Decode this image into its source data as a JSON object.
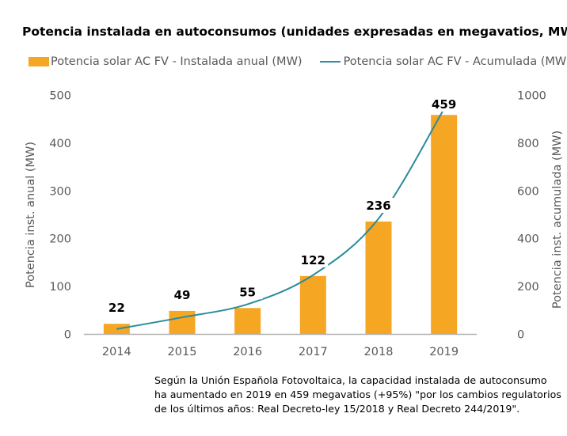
{
  "chart_data": {
    "type": "bar",
    "title": "Potencia instalada en autoconsumos (unidades expresadas en megavatios, MW)",
    "categories": [
      "2014",
      "2015",
      "2016",
      "2017",
      "2018",
      "2019"
    ],
    "series": [
      {
        "name": "Potencia solar AC FV - Instalada anual (MW)",
        "type": "bar",
        "axis": "left",
        "color": "#f5a623",
        "values": [
          22,
          49,
          55,
          122,
          236,
          459
        ]
      },
      {
        "name": "Potencia solar AC FV - Acumulada (MW)",
        "type": "line",
        "axis": "right",
        "color": "#2a8c9c",
        "values": [
          22,
          71,
          126,
          248,
          484,
          943
        ]
      }
    ],
    "data_labels": [
      "22",
      "49",
      "55",
      "122",
      "236",
      "459"
    ],
    "ylabel": "Potencia inst. anual (MW)",
    "y2label": "Potencia inst. acumulada (MW)",
    "ylim": [
      0,
      500
    ],
    "y2lim": [
      0,
      1000
    ],
    "yticks": [
      "0",
      "100",
      "200",
      "300",
      "400",
      "500"
    ],
    "y2ticks": [
      "0",
      "200",
      "400",
      "600",
      "800",
      "1000"
    ],
    "grid": false,
    "legend": "top"
  },
  "note": [
    "Según la Unión Española Fotovoltaica, la capacidad instalada de autoconsumo",
    "ha aumentado en 2019 en 459 megavatios (+95%) \"por los cambios regulatorios",
    "de los últimos años: Real Decreto-ley 15/2018 y Real Decreto 244/2019\"."
  ]
}
